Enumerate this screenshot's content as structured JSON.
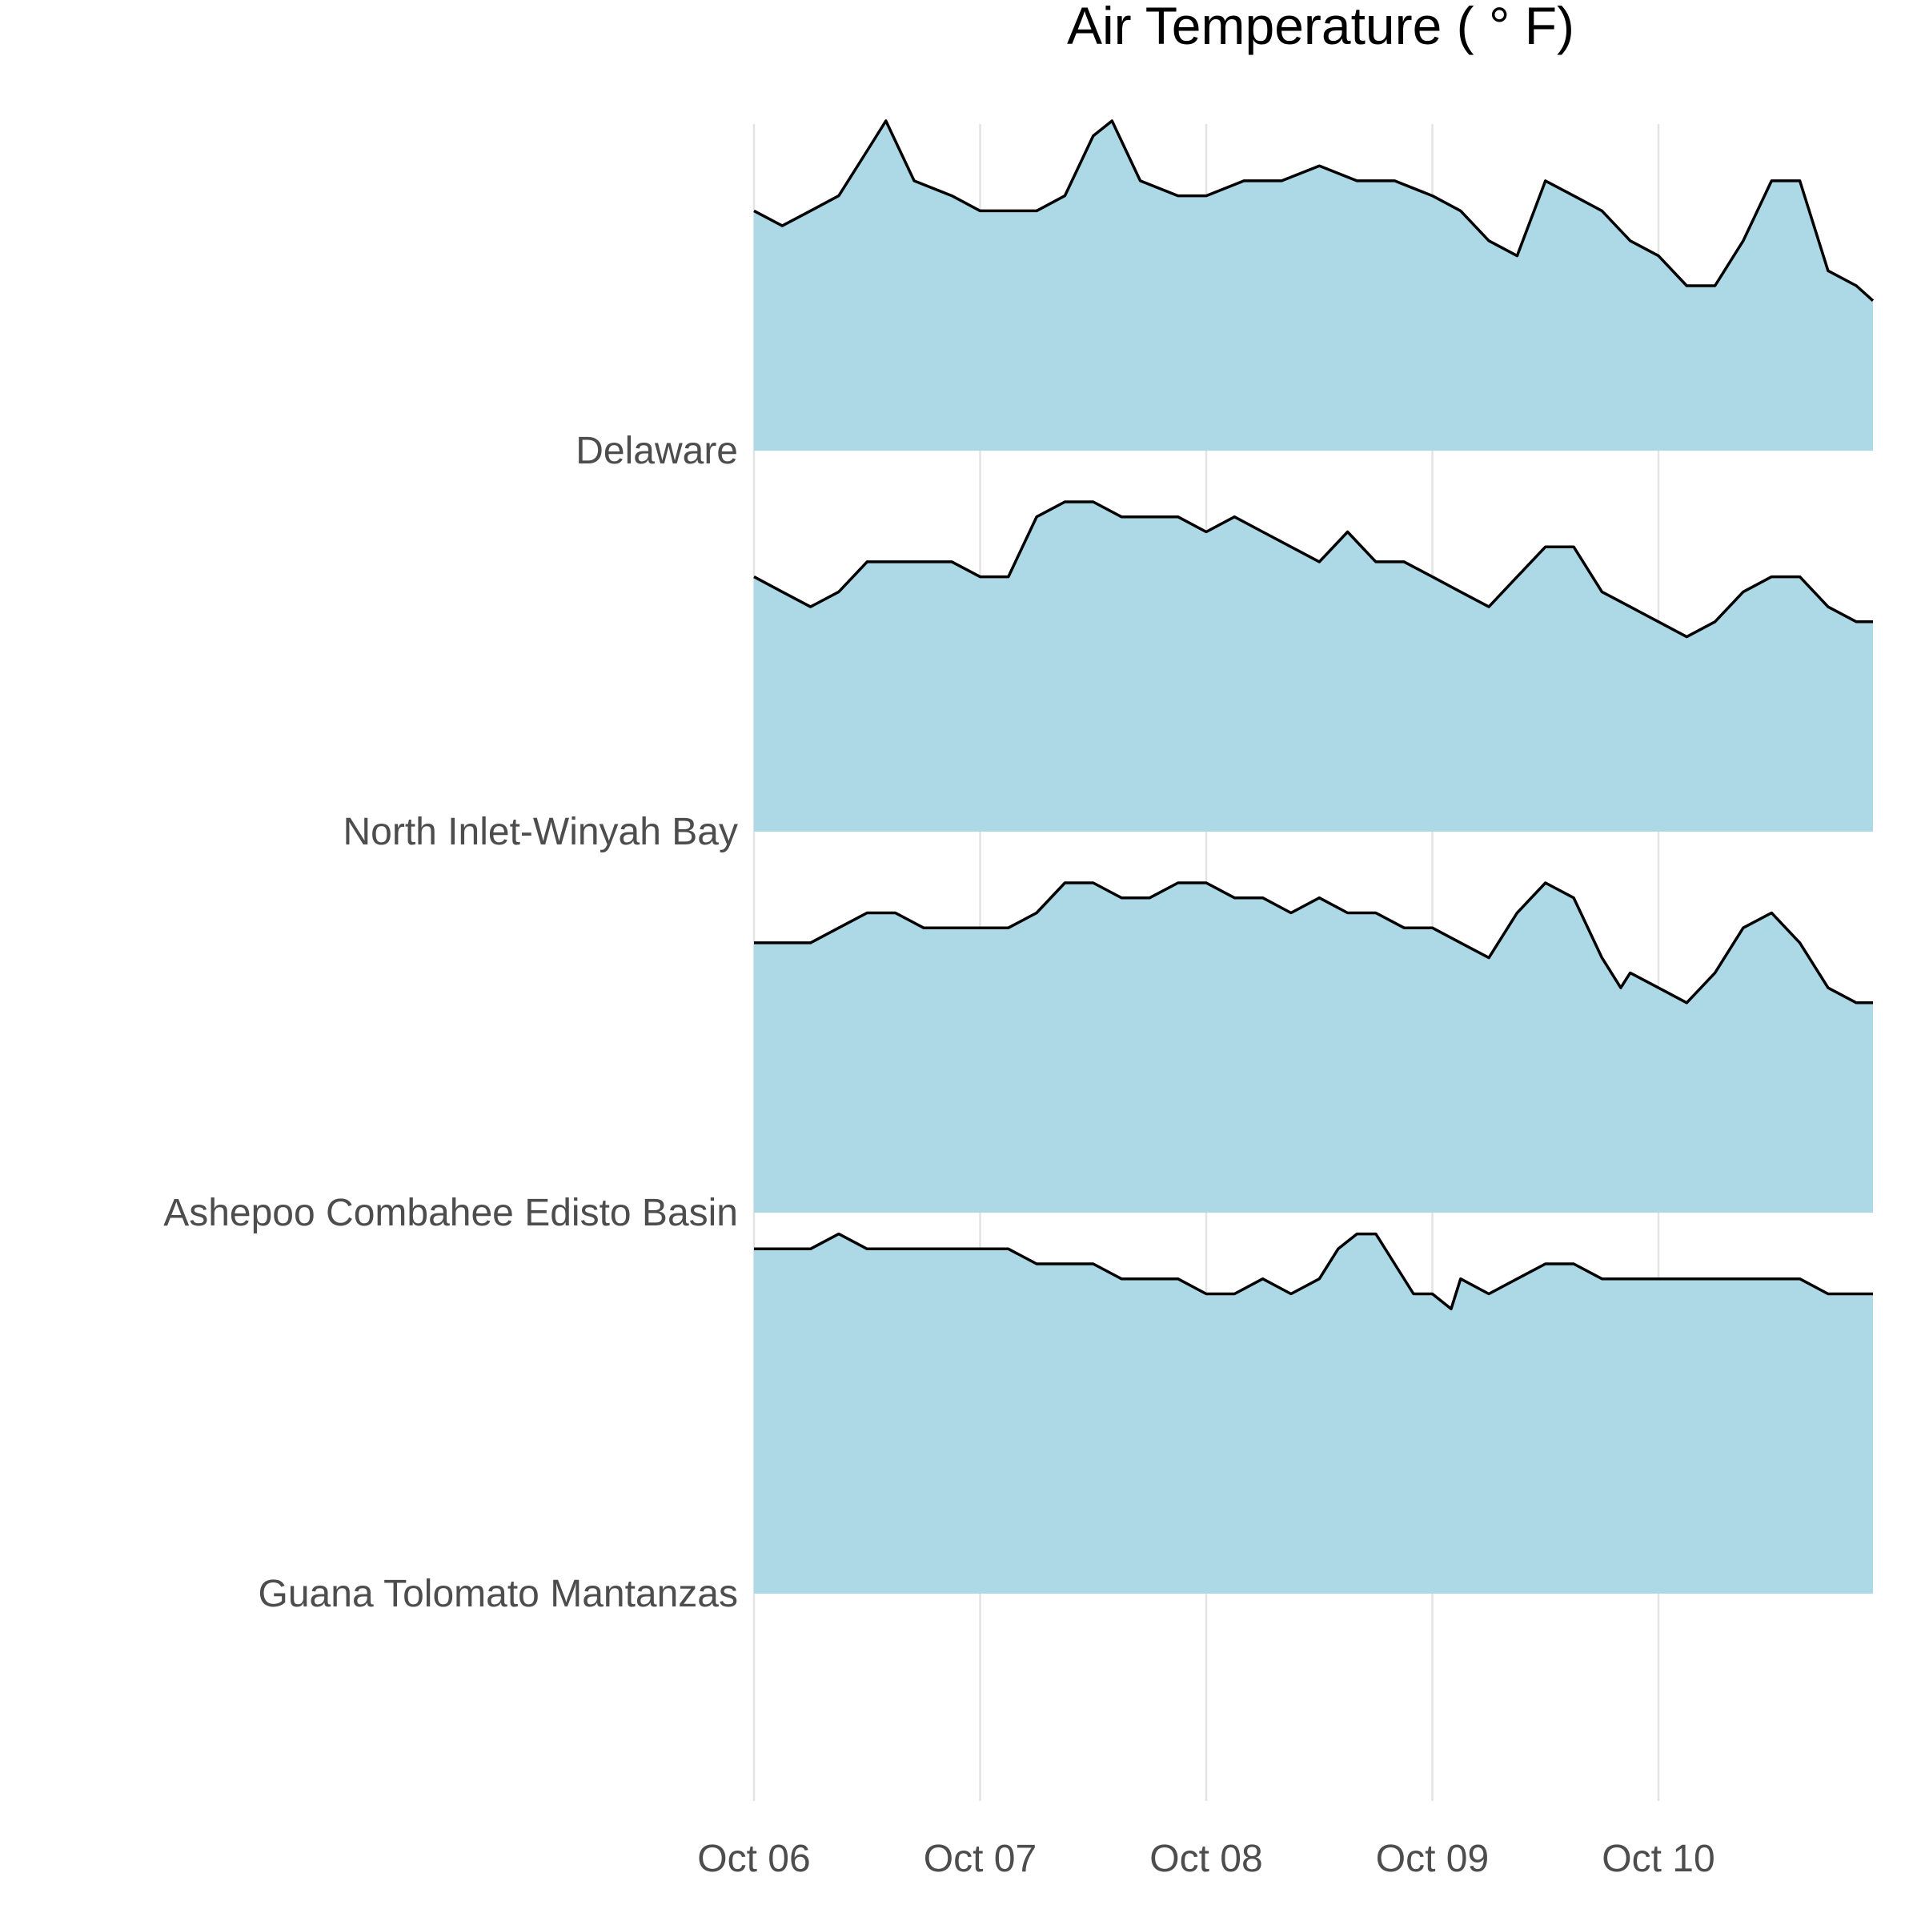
{
  "chart_data": {
    "type": "area",
    "title": "Air Temperature ( ° F)",
    "xlabel": "",
    "ylabel": "",
    "x_unit": "day",
    "xlim": [
      "Oct 06",
      "Oct 10 (end of day)"
    ],
    "x_ticks": [
      "Oct 06",
      "Oct 07",
      "Oct 08",
      "Oct 09",
      "Oct 10"
    ],
    "grid": true,
    "legend": "none",
    "fill_color": "#add8e6",
    "line_color": "#000000",
    "series": [
      {
        "name": "Delaware",
        "x": [
          "Oct 06 00:00",
          "Oct 06 03:00",
          "Oct 06 06:00",
          "Oct 06 09:00",
          "Oct 06 12:00",
          "Oct 06 14:00",
          "Oct 06 17:00",
          "Oct 06 21:00",
          "Oct 07 00:00",
          "Oct 07 03:00",
          "Oct 07 06:00",
          "Oct 07 09:00",
          "Oct 07 12:00",
          "Oct 07 14:00",
          "Oct 07 17:00",
          "Oct 07 21:00",
          "Oct 08 00:00",
          "Oct 08 04:00",
          "Oct 08 08:00",
          "Oct 08 12:00",
          "Oct 08 16:00",
          "Oct 08 20:00",
          "Oct 09 00:00",
          "Oct 09 03:00",
          "Oct 09 06:00",
          "Oct 09 09:00",
          "Oct 09 12:00",
          "Oct 09 15:00",
          "Oct 09 18:00",
          "Oct 09 21:00",
          "Oct 10 00:00",
          "Oct 10 03:00",
          "Oct 10 06:00",
          "Oct 10 09:00",
          "Oct 10 12:00",
          "Oct 10 15:00",
          "Oct 10 18:00",
          "Oct 10 21:00",
          "Oct 10 23:00"
        ],
        "y": [
          72,
          71,
          72,
          73,
          76,
          78,
          74,
          73,
          72,
          72,
          72,
          73,
          77,
          78,
          74,
          73,
          73,
          74,
          74,
          75,
          74,
          74,
          73,
          72,
          70,
          69,
          74,
          73,
          72,
          70,
          69,
          67,
          67,
          70,
          74,
          74,
          68,
          67,
          66
        ]
      },
      {
        "name": "North Inlet-Winyah Bay",
        "x": [
          "Oct 06 00:00",
          "Oct 06 03:00",
          "Oct 06 06:00",
          "Oct 06 09:00",
          "Oct 06 12:00",
          "Oct 06 15:00",
          "Oct 06 18:00",
          "Oct 06 21:00",
          "Oct 07 00:00",
          "Oct 07 03:00",
          "Oct 07 06:00",
          "Oct 07 09:00",
          "Oct 07 12:00",
          "Oct 07 15:00",
          "Oct 07 18:00",
          "Oct 07 21:00",
          "Oct 08 00:00",
          "Oct 08 03:00",
          "Oct 08 06:00",
          "Oct 08 09:00",
          "Oct 08 12:00",
          "Oct 08 15:00",
          "Oct 08 18:00",
          "Oct 08 21:00",
          "Oct 09 00:00",
          "Oct 09 03:00",
          "Oct 09 06:00",
          "Oct 09 09:00",
          "Oct 09 12:00",
          "Oct 09 15:00",
          "Oct 09 18:00",
          "Oct 09 21:00",
          "Oct 10 00:00",
          "Oct 10 03:00",
          "Oct 10 06:00",
          "Oct 10 09:00",
          "Oct 10 12:00",
          "Oct 10 15:00",
          "Oct 10 18:00",
          "Oct 10 21:00",
          "Oct 10 23:00"
        ],
        "y": [
          73,
          72,
          71,
          72,
          74,
          74,
          74,
          74,
          73,
          73,
          77,
          78,
          78,
          77,
          77,
          77,
          76,
          77,
          76,
          75,
          74,
          76,
          74,
          74,
          73,
          72,
          71,
          73,
          75,
          75,
          72,
          71,
          70,
          69,
          70,
          72,
          73,
          73,
          71,
          70,
          70
        ]
      },
      {
        "name": "Ashepoo Combahee Edisto Basin",
        "x": [
          "Oct 06 00:00",
          "Oct 06 03:00",
          "Oct 06 06:00",
          "Oct 06 09:00",
          "Oct 06 12:00",
          "Oct 06 15:00",
          "Oct 06 18:00",
          "Oct 06 21:00",
          "Oct 07 00:00",
          "Oct 07 03:00",
          "Oct 07 06:00",
          "Oct 07 09:00",
          "Oct 07 12:00",
          "Oct 07 15:00",
          "Oct 07 18:00",
          "Oct 07 21:00",
          "Oct 08 00:00",
          "Oct 08 03:00",
          "Oct 08 06:00",
          "Oct 08 09:00",
          "Oct 08 12:00",
          "Oct 08 15:00",
          "Oct 08 18:00",
          "Oct 08 21:00",
          "Oct 09 00:00",
          "Oct 09 03:00",
          "Oct 09 06:00",
          "Oct 09 09:00",
          "Oct 09 12:00",
          "Oct 09 15:00",
          "Oct 09 18:00",
          "Oct 09 20:00",
          "Oct 09 21:00",
          "Oct 10 00:00",
          "Oct 10 03:00",
          "Oct 10 06:00",
          "Oct 10 09:00",
          "Oct 10 12:00",
          "Oct 10 15:00",
          "Oct 10 18:00",
          "Oct 10 21:00",
          "Oct 10 23:00"
        ],
        "y": [
          74,
          74,
          74,
          75,
          76,
          76,
          75,
          75,
          75,
          75,
          76,
          78,
          78,
          77,
          77,
          78,
          78,
          77,
          77,
          76,
          77,
          76,
          76,
          75,
          75,
          74,
          73,
          76,
          78,
          77,
          73,
          71,
          72,
          71,
          70,
          72,
          75,
          76,
          74,
          71,
          70,
          70
        ]
      },
      {
        "name": "Guana Tolomato Mantanzas",
        "x": [
          "Oct 06 00:00",
          "Oct 06 03:00",
          "Oct 06 06:00",
          "Oct 06 09:00",
          "Oct 06 12:00",
          "Oct 06 15:00",
          "Oct 06 18:00",
          "Oct 06 21:00",
          "Oct 07 00:00",
          "Oct 07 03:00",
          "Oct 07 06:00",
          "Oct 07 09:00",
          "Oct 07 12:00",
          "Oct 07 15:00",
          "Oct 07 18:00",
          "Oct 07 21:00",
          "Oct 08 00:00",
          "Oct 08 03:00",
          "Oct 08 06:00",
          "Oct 08 09:00",
          "Oct 08 12:00",
          "Oct 08 14:00",
          "Oct 08 16:00",
          "Oct 08 18:00",
          "Oct 08 20:00",
          "Oct 08 22:00",
          "Oct 09 00:00",
          "Oct 09 02:00",
          "Oct 09 03:00",
          "Oct 09 06:00",
          "Oct 09 09:00",
          "Oct 09 12:00",
          "Oct 09 15:00",
          "Oct 09 18:00",
          "Oct 09 21:00",
          "Oct 10 00:00",
          "Oct 10 03:00",
          "Oct 10 06:00",
          "Oct 10 09:00",
          "Oct 10 12:00",
          "Oct 10 15:00",
          "Oct 10 18:00",
          "Oct 10 21:00",
          "Oct 10 23:00"
        ],
        "y": [
          79,
          79,
          79,
          80,
          79,
          79,
          79,
          79,
          79,
          79,
          78,
          78,
          78,
          77,
          77,
          77,
          76,
          76,
          77,
          76,
          77,
          79,
          80,
          80,
          78,
          76,
          76,
          75,
          77,
          76,
          77,
          78,
          78,
          77,
          77,
          77,
          77,
          77,
          77,
          77,
          77,
          76,
          76,
          76
        ]
      }
    ]
  }
}
